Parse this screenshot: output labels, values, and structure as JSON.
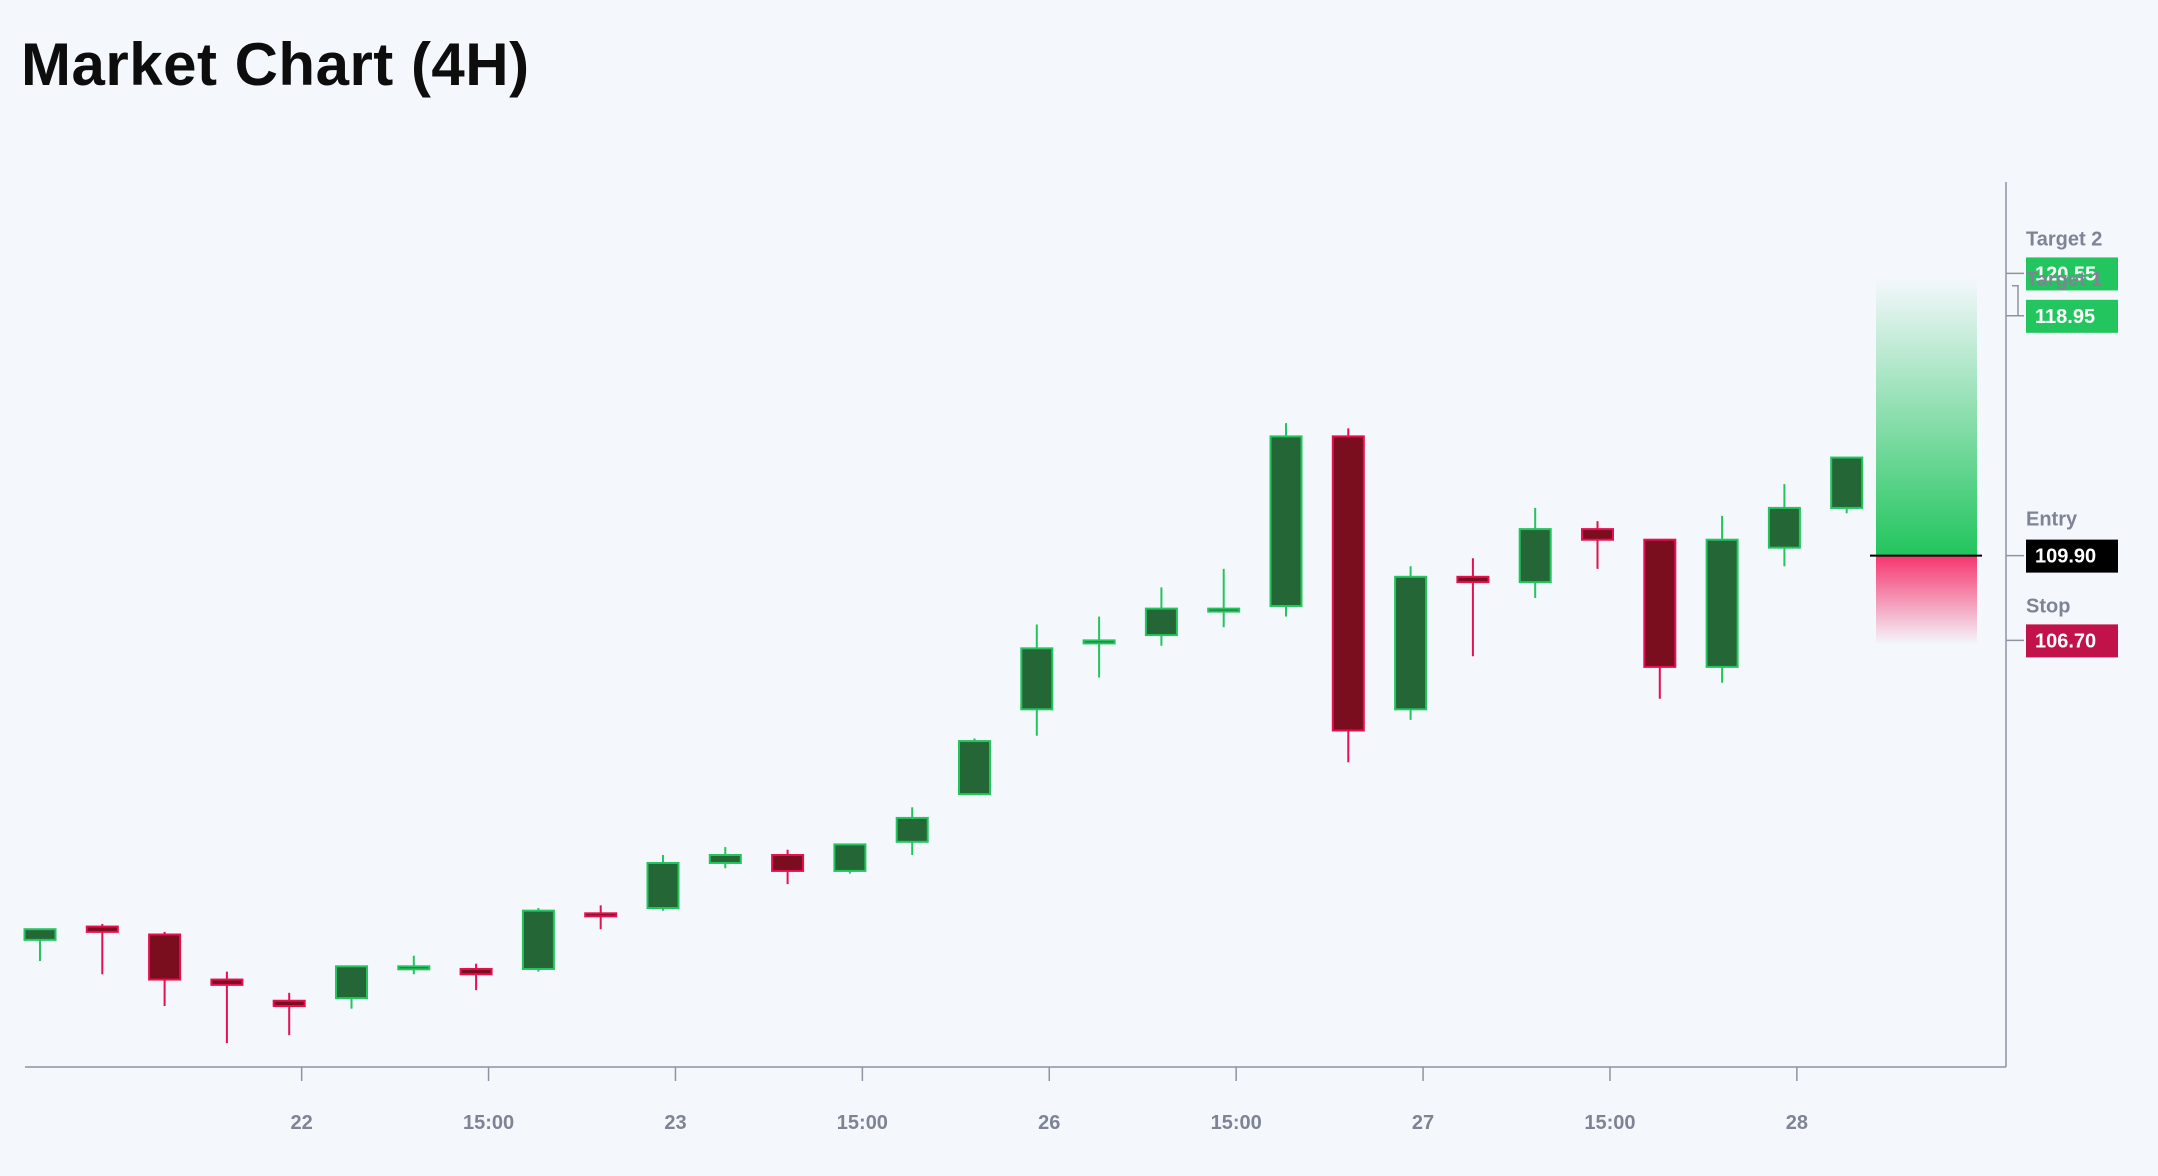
{
  "title": "Market Chart (4H)",
  "colors": {
    "background": "#f4f7fc",
    "bull_body": "#256637",
    "bull_border": "#22c55e",
    "bull_wick": "#22c55e",
    "bear_body": "#7a0d1e",
    "bear_border": "#e5104f",
    "bear_wick": "#e5104f",
    "axis": "#8e94a3",
    "tick_text": "#7e8494",
    "target_badge": "#22c55e",
    "entry_badge": "#000000",
    "stop_badge": "#c2124a",
    "reward_zone": "#22c55e",
    "risk_zone": "#f5366f"
  },
  "chart_data": {
    "type": "candlestick",
    "title": "Market Chart (4H)",
    "xlabel": "",
    "ylabel": "",
    "grid": false,
    "ylim": [
      90.6,
      124.0
    ],
    "x_tick_labels": [
      {
        "label": "22",
        "at_candle": 4.2
      },
      {
        "label": "15:00",
        "at_candle": 7.2
      },
      {
        "label": "23",
        "at_candle": 10.2
      },
      {
        "label": "15:00",
        "at_candle": 13.2
      },
      {
        "label": "26",
        "at_candle": 16.2
      },
      {
        "label": "15:00",
        "at_candle": 19.2
      },
      {
        "label": "27",
        "at_candle": 22.2
      },
      {
        "label": "15:00",
        "at_candle": 25.2
      },
      {
        "label": "28",
        "at_candle": 28.2
      }
    ],
    "candles": [
      {
        "open": 95.4,
        "high": 95.6,
        "low": 94.6,
        "close": 95.8
      },
      {
        "open": 95.9,
        "high": 96.0,
        "low": 94.1,
        "close": 95.7
      },
      {
        "open": 95.6,
        "high": 95.7,
        "low": 92.9,
        "close": 93.9
      },
      {
        "open": 93.9,
        "high": 94.2,
        "low": 91.5,
        "close": 93.7
      },
      {
        "open": 93.1,
        "high": 93.4,
        "low": 91.8,
        "close": 92.9
      },
      {
        "open": 93.2,
        "high": 94.4,
        "low": 92.8,
        "close": 94.4
      },
      {
        "open": 94.4,
        "high": 94.8,
        "low": 94.1,
        "close": 94.4
      },
      {
        "open": 94.3,
        "high": 94.5,
        "low": 93.5,
        "close": 94.1
      },
      {
        "open": 94.3,
        "high": 96.6,
        "low": 94.2,
        "close": 96.5
      },
      {
        "open": 96.4,
        "high": 96.7,
        "low": 95.8,
        "close": 96.3
      },
      {
        "open": 96.6,
        "high": 98.6,
        "low": 96.5,
        "close": 98.3
      },
      {
        "open": 98.3,
        "high": 98.9,
        "low": 98.1,
        "close": 98.6
      },
      {
        "open": 98.6,
        "high": 98.8,
        "low": 97.5,
        "close": 98.0
      },
      {
        "open": 98.0,
        "high": 99.0,
        "low": 97.9,
        "close": 99.0
      },
      {
        "open": 99.1,
        "high": 100.4,
        "low": 98.6,
        "close": 100.0
      },
      {
        "open": 100.9,
        "high": 103.0,
        "low": 100.9,
        "close": 102.9
      },
      {
        "open": 104.1,
        "high": 107.3,
        "low": 103.1,
        "close": 106.4
      },
      {
        "open": 106.6,
        "high": 107.6,
        "low": 105.3,
        "close": 106.7
      },
      {
        "open": 106.9,
        "high": 108.7,
        "low": 106.5,
        "close": 107.9
      },
      {
        "open": 107.8,
        "high": 109.4,
        "low": 107.2,
        "close": 107.9
      },
      {
        "open": 108.0,
        "high": 114.9,
        "low": 107.6,
        "close": 114.4
      },
      {
        "open": 114.4,
        "high": 114.7,
        "low": 102.1,
        "close": 103.3
      },
      {
        "open": 104.1,
        "high": 109.5,
        "low": 103.7,
        "close": 109.1
      },
      {
        "open": 109.1,
        "high": 109.8,
        "low": 106.1,
        "close": 108.9
      },
      {
        "open": 108.9,
        "high": 111.7,
        "low": 108.3,
        "close": 110.9
      },
      {
        "open": 110.9,
        "high": 111.2,
        "low": 109.4,
        "close": 110.5
      },
      {
        "open": 110.5,
        "high": 110.5,
        "low": 104.5,
        "close": 105.7
      },
      {
        "open": 105.7,
        "high": 111.4,
        "low": 105.1,
        "close": 110.5
      },
      {
        "open": 110.2,
        "high": 112.6,
        "low": 109.5,
        "close": 111.7
      },
      {
        "open": 111.7,
        "high": 113.6,
        "low": 111.5,
        "close": 113.6
      }
    ],
    "levels": [
      {
        "label": "Target 2",
        "value": 120.55,
        "value_text": "120.55",
        "kind": "target"
      },
      {
        "label": "Target 1",
        "value": 118.95,
        "value_text": "118.95",
        "kind": "target"
      },
      {
        "label": "Entry",
        "value": 109.9,
        "value_text": "109.90",
        "kind": "entry"
      },
      {
        "label": "Stop",
        "value": 106.7,
        "value_text": "106.70",
        "kind": "stop"
      }
    ]
  }
}
